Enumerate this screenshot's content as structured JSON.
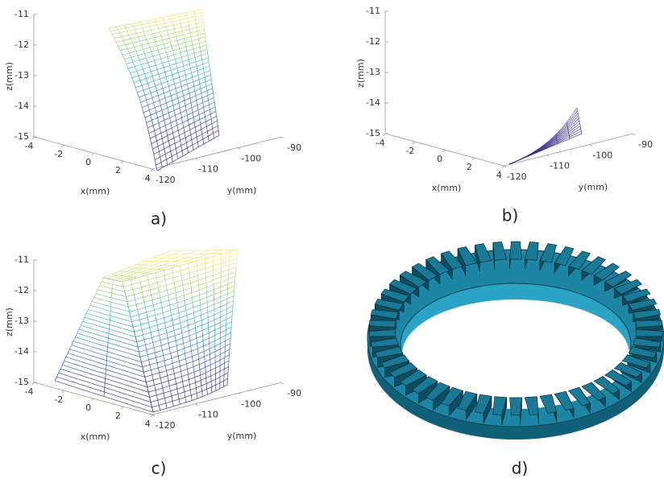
{
  "panels": [
    {
      "label": "a)",
      "zlabel": "z(mm)",
      "xlabel": "x(mm)",
      "ylabel": "y(mm)",
      "zticks": [
        -11,
        -12,
        -13,
        -14,
        -15
      ],
      "xticks": [
        -4,
        -2,
        0,
        2,
        4
      ],
      "yticks": [
        -120,
        -110,
        -100,
        -90
      ]
    },
    {
      "label": "b)",
      "zlabel": "z(mm)",
      "xlabel": "x(mm)",
      "ylabel": "y(mm)",
      "zticks": [
        -11,
        -12,
        -13,
        -14,
        -15
      ],
      "xticks": [
        -4,
        -2,
        0,
        2,
        4
      ],
      "yticks": [
        -120,
        -110,
        -100,
        -90
      ]
    },
    {
      "label": "c)",
      "zlabel": "z(mm)",
      "xlabel": "x(mm)",
      "ylabel": "y(mm)",
      "zticks": [
        -11,
        -12,
        -13,
        -14,
        -15
      ],
      "xticks": [
        -4,
        -2,
        0,
        2,
        4
      ],
      "yticks": [
        -120,
        -110,
        -100,
        -90
      ]
    }
  ],
  "panel_d": {
    "label": "d)"
  }
}
